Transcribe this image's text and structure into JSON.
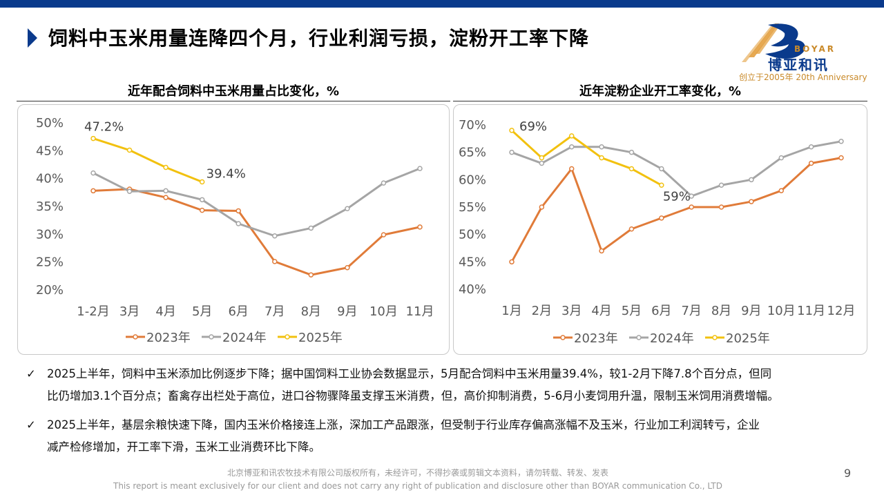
{
  "page": {
    "title": "饲料中玉米用量连降四个月，行业利润亏损，淀粉开工率下降",
    "page_number": "9",
    "footer_cn": "北京博亚和讯农牧技术有限公司版权所有，未经许可，不得抄袭或剪辑文本资料，请勿转载、转发、发表",
    "footer_en": "This report is meant exclusively for our client and does not carry any right of publication and disclosure other than BOYAR communication Co., LTD"
  },
  "logo": {
    "brand_en": "BOYAR",
    "brand_cn": "博亚和讯",
    "tagline": "创立于2005年 20th Anniversary"
  },
  "colors": {
    "header_bar": "#0a3a8c",
    "series_2023": "#e07b39",
    "series_2024": "#a5a5a5",
    "series_2025": "#f2c10f"
  },
  "bullets": [
    {
      "line1": "2025上半年，饲料中玉米添加比例逐步下降；据中国饲料工业协会数据显示，5月配合饲料中玉米用量39.4%，较1-2月下降7.8个百分点，但同",
      "line2": "比仍增加3.1个百分点；畜禽存出栏处于高位，进口谷物骤降虽支撑玉米消费，但，高价抑制消费，5-6月小麦饲用升温，限制玉米饲用消费增幅。"
    },
    {
      "line1": "2025上半年，基层余粮快速下降，国内玉米价格接连上涨，深加工产品跟涨，但受制于行业库存偏高涨幅不及玉米，行业加工利润转亏，企业",
      "line2": "减产检修增加，开工率下滑，玉米工业消费环比下降。"
    }
  ],
  "chart_data": [
    {
      "type": "line",
      "title": "近年配合饲料中玉米用量占比变化，%",
      "categories": [
        "1-2月",
        "3月",
        "4月",
        "5月",
        "6月",
        "7月",
        "8月",
        "9月",
        "10月",
        "11月"
      ],
      "yticks": [
        "20%",
        "25%",
        "30%",
        "35%",
        "40%",
        "45%",
        "50%"
      ],
      "ylim": [
        20,
        50
      ],
      "series": [
        {
          "name": "2023年",
          "values": [
            37.8,
            38.1,
            36.6,
            34.3,
            34.2,
            25.1,
            22.7,
            24.0,
            29.9,
            31.3
          ]
        },
        {
          "name": "2024年",
          "values": [
            41.0,
            37.7,
            37.8,
            36.2,
            31.9,
            29.7,
            31.1,
            34.6,
            39.2,
            41.8
          ]
        },
        {
          "name": "2025年",
          "values": [
            47.2,
            45.1,
            42.0,
            39.4,
            null,
            null,
            null,
            null,
            null,
            null
          ]
        }
      ],
      "annotations": [
        {
          "series": "2025年",
          "index": 0,
          "text": "47.2%"
        },
        {
          "series": "2025年",
          "index": 3,
          "text": "39.4%"
        }
      ],
      "legend": [
        "2023年",
        "2024年",
        "2025年"
      ],
      "legend_position": "bottom"
    },
    {
      "type": "line",
      "title": "近年淀粉企业开工率变化，%",
      "categories": [
        "1月",
        "2月",
        "3月",
        "4月",
        "5月",
        "6月",
        "7月",
        "8月",
        "9月",
        "10月",
        "11月",
        "12月"
      ],
      "yticks": [
        "40%",
        "45%",
        "50%",
        "55%",
        "60%",
        "65%",
        "70%"
      ],
      "ylim": [
        40,
        70
      ],
      "series": [
        {
          "name": "2023年",
          "values": [
            45,
            55,
            62,
            47,
            51,
            53,
            55,
            55,
            56,
            58,
            63,
            64
          ]
        },
        {
          "name": "2024年",
          "values": [
            65,
            63,
            66,
            66,
            65,
            62,
            57,
            59,
            60,
            64,
            66,
            67
          ]
        },
        {
          "name": "2025年",
          "values": [
            69,
            64,
            68,
            64,
            62,
            59,
            null,
            null,
            null,
            null,
            null,
            null
          ]
        }
      ],
      "annotations": [
        {
          "series": "2025年",
          "index": 0,
          "text": "69%"
        },
        {
          "series": "2025年",
          "index": 5,
          "text": "59%"
        }
      ],
      "legend": [
        "2023年",
        "2024年",
        "2025年"
      ],
      "legend_position": "bottom"
    }
  ]
}
